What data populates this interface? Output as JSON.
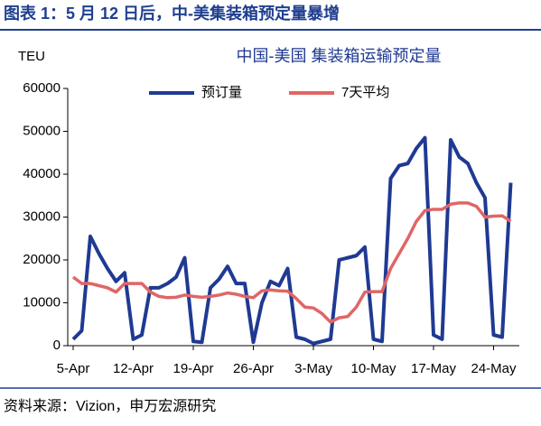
{
  "header": {
    "title": "图表 1：5 月 12 日后，中-美集装箱预定量暴增"
  },
  "footer": {
    "source": "资料来源：Vizion，申万宏源研究"
  },
  "chart_data": {
    "type": "line",
    "title": "中国-美国 集装箱运输预定量",
    "ylabel": "TEU",
    "categories": [
      "5-Apr",
      null,
      null,
      null,
      null,
      null,
      null,
      "12-Apr",
      null,
      null,
      null,
      null,
      null,
      null,
      "19-Apr",
      null,
      null,
      null,
      null,
      null,
      null,
      "26-Apr",
      null,
      null,
      null,
      null,
      null,
      null,
      "3-May",
      null,
      null,
      null,
      null,
      null,
      null,
      "10-May",
      null,
      null,
      null,
      null,
      null,
      null,
      "17-May",
      null,
      null,
      null,
      null,
      null,
      null,
      "24-May",
      null,
      null
    ],
    "series": [
      {
        "name": "预订量",
        "color": "#1f3a93",
        "values": [
          1500,
          3500,
          25500,
          21500,
          18000,
          15000,
          17000,
          1500,
          2500,
          13500,
          13500,
          14500,
          16000,
          20500,
          1000,
          800,
          13500,
          15500,
          18500,
          14500,
          14500,
          800,
          10000,
          15000,
          14000,
          18000,
          2000,
          1500,
          500,
          1000,
          1500,
          20000,
          20500,
          21000,
          23000,
          1500,
          1000,
          39000,
          42000,
          42500,
          46000,
          48500,
          2500,
          1500,
          48000,
          44000,
          42500,
          38000,
          34500,
          2500,
          2000,
          38000
        ]
      },
      {
        "name": "7天平均",
        "color": "#e06666",
        "values": [
          16000,
          14500,
          14500,
          14000,
          13500,
          12500,
          14500,
          14500,
          14500,
          12500,
          11500,
          11200,
          11300,
          11800,
          11500,
          11300,
          11500,
          11800,
          12300,
          12000,
          11500,
          11200,
          12800,
          13000,
          12800,
          12700,
          11000,
          9000,
          8800,
          7500,
          5500,
          6500,
          6800,
          9000,
          12500,
          12600,
          12600,
          18000,
          21500,
          25000,
          29000,
          31500,
          31800,
          31800,
          33000,
          33300,
          33300,
          32500,
          30000,
          30200,
          30300,
          29000
        ]
      }
    ],
    "ylim": [
      0,
      60000
    ],
    "yticks": [
      0,
      10000,
      20000,
      30000,
      40000,
      50000,
      60000
    ],
    "legend": "top"
  }
}
